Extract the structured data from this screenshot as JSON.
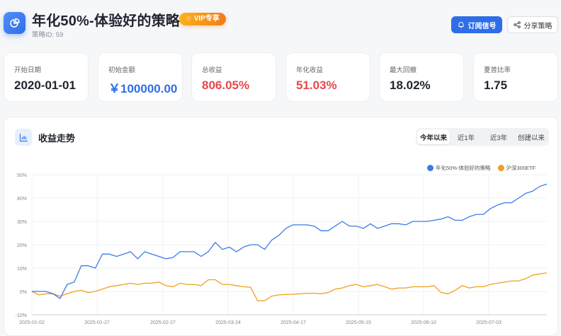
{
  "header": {
    "title": "年化50%-体验好的策略",
    "badge": "☆ VIP专享",
    "strategy_id": "策略ID: 59",
    "logo_icon": "pie-chart-icon",
    "subscribe_label": "订阅信号",
    "subscribe_icon": "bell-icon",
    "share_label": "分享策略",
    "share_icon": "share-icon"
  },
  "stats": [
    {
      "label": "开始日期",
      "value": "2020-01-01",
      "color": "#1f2430"
    },
    {
      "label": "初始金额",
      "value": "￥100000.00",
      "color": "#2f6de8"
    },
    {
      "label": "总收益",
      "value": "806.05%",
      "color": "#e5484d"
    },
    {
      "label": "年化收益",
      "value": "51.03%",
      "color": "#e5484d"
    },
    {
      "label": "最大回撤",
      "value": "18.02%",
      "color": "#1f2430"
    },
    {
      "label": "夏普比率",
      "value": "1.75",
      "color": "#1f2430"
    }
  ],
  "panel": {
    "title": "收益走势",
    "icon": "bar-chart-icon",
    "tabs": [
      {
        "label": "今年以来",
        "active": true
      },
      {
        "label": "近1年"
      },
      {
        "label": "近3年"
      },
      {
        "label": "创建以来"
      }
    ]
  },
  "chart_data": {
    "type": "line",
    "ylim": [
      -10,
      50
    ],
    "y_ticks": [
      "-10%",
      "0%",
      "10%",
      "20%",
      "30%",
      "40%",
      "50%"
    ],
    "y_tick_values": [
      -10,
      0,
      10,
      20,
      30,
      40,
      50
    ],
    "x_ticks": [
      "2025-01-02",
      "2025-01-27",
      "2025-02-27",
      "2025-03-24",
      "2025-04-17",
      "2025-05-15",
      "2025-06-10",
      "2025-07-03"
    ],
    "grid": true,
    "legend": "top-right",
    "series": [
      {
        "name": "年化50%-体验好的策略",
        "color": "#3b7cea",
        "values": [
          0,
          0,
          0,
          -1,
          -3,
          3,
          4,
          11,
          11,
          10,
          16,
          16,
          15,
          16,
          17,
          14,
          17,
          16,
          15,
          14,
          14.5,
          17,
          17,
          17,
          15,
          17,
          21,
          18,
          19,
          17,
          19,
          20,
          20,
          18,
          22,
          24,
          27,
          28.5,
          28.5,
          28.5,
          28,
          26,
          26,
          28,
          30,
          28,
          28,
          27,
          29,
          27,
          28,
          29,
          29,
          28.5,
          30,
          30,
          30,
          30.5,
          31,
          32,
          30.5,
          30.5,
          32,
          33,
          33,
          35.5,
          37,
          38,
          38,
          40,
          42,
          43,
          45,
          46
        ]
      },
      {
        "name": "沪深300ETF",
        "color": "#f0a020",
        "values": [
          0,
          -1.5,
          -1,
          -1,
          -2,
          -1,
          0,
          0.5,
          -0.5,
          0,
          1,
          2,
          2.5,
          3,
          3.5,
          3,
          3.5,
          3.5,
          4,
          2.5,
          2,
          3.5,
          3,
          3,
          2.5,
          5,
          5,
          3,
          3,
          2.5,
          2,
          1.8,
          -4,
          -4,
          -2,
          -1.5,
          -1.3,
          -1.2,
          -1,
          -0.8,
          -0.8,
          -1,
          -0.5,
          1,
          1.5,
          2.5,
          3,
          2,
          2.5,
          3,
          2,
          1,
          1.5,
          1.5,
          2,
          2,
          2,
          2.5,
          -0.5,
          -1,
          0.5,
          2.5,
          1.5,
          2,
          2,
          3,
          3.5,
          4,
          4.5,
          4.5,
          5.5,
          7,
          7.5,
          8
        ]
      }
    ]
  }
}
